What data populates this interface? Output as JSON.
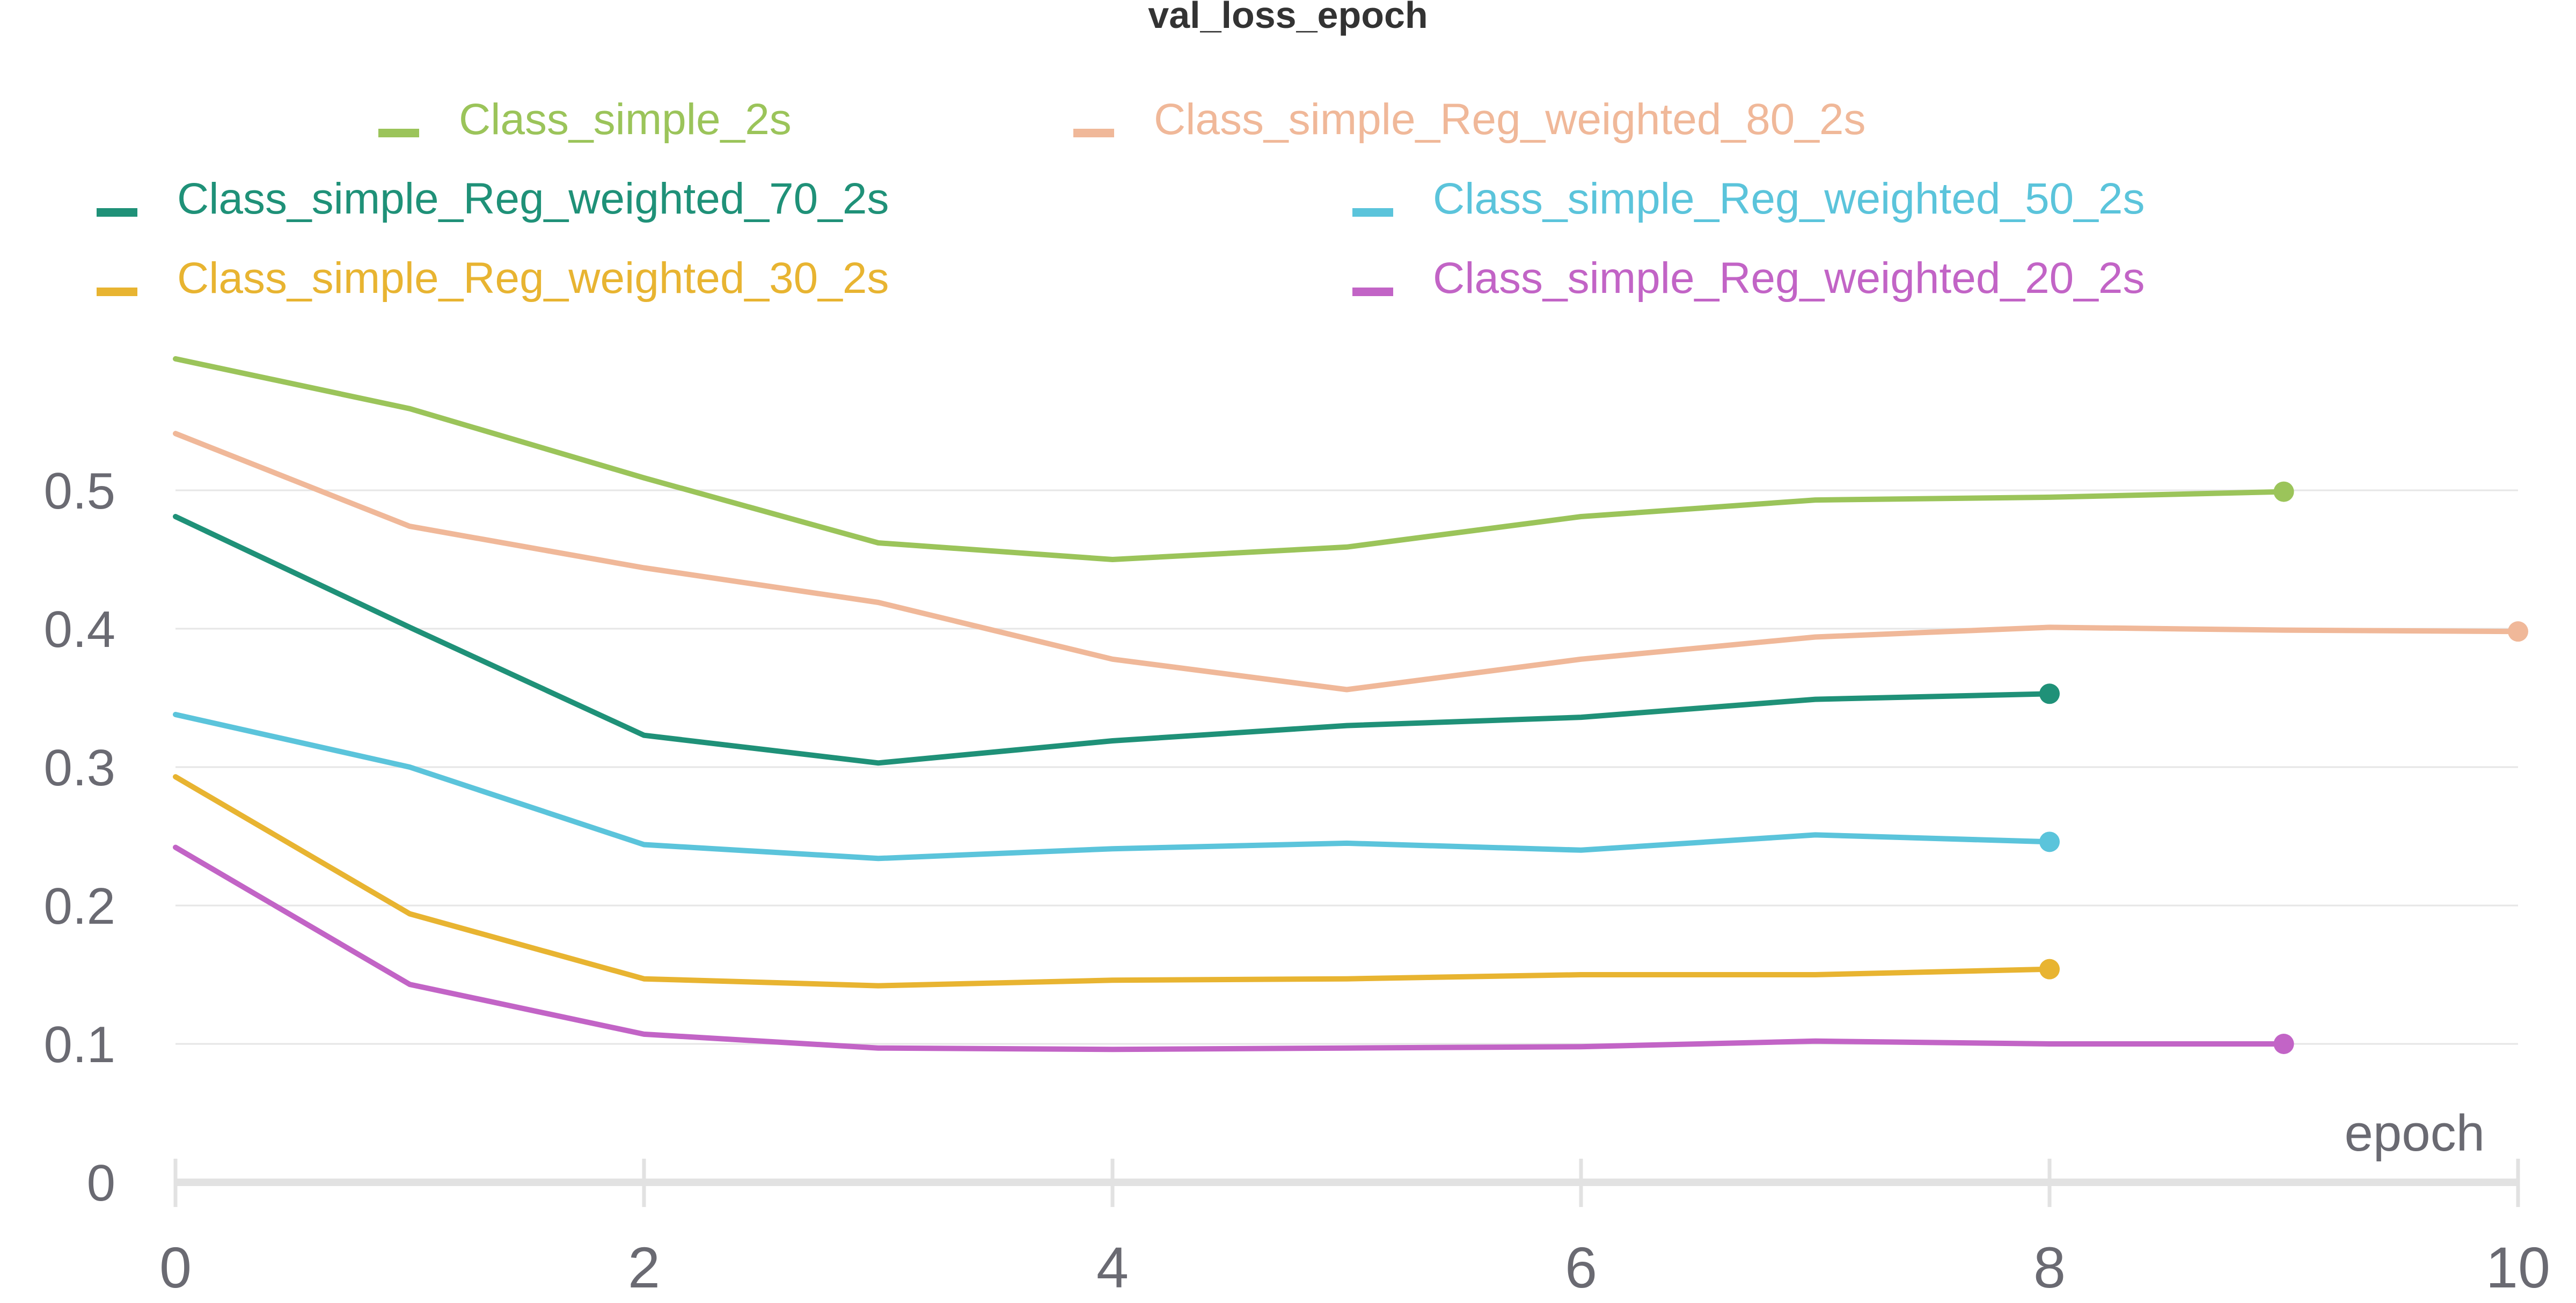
{
  "chart_data": {
    "type": "line",
    "title": "val_loss_epoch",
    "xlabel": "epoch",
    "ylabel": "",
    "xlim": [
      0,
      10
    ],
    "ylim": [
      0,
      0.6
    ],
    "x_ticks": [
      0,
      2,
      4,
      6,
      8,
      10
    ],
    "y_ticks": [
      0,
      0.1,
      0.2,
      0.3,
      0.4,
      0.5
    ],
    "grid": true,
    "legend_position": "top",
    "series": [
      {
        "name": "Class_simple_2s",
        "color": "#9bc45a",
        "x": [
          0,
          1,
          2,
          3,
          4,
          5,
          6,
          7,
          8,
          9
        ],
        "values": [
          0.595,
          0.559,
          0.509,
          0.462,
          0.45,
          0.459,
          0.481,
          0.493,
          0.495,
          0.499
        ]
      },
      {
        "name": "Class_simple_Reg_weighted_80_2s",
        "color": "#f0b899",
        "x": [
          0,
          1,
          2,
          3,
          4,
          5,
          6,
          7,
          8,
          9,
          10
        ],
        "values": [
          0.541,
          0.474,
          0.444,
          0.419,
          0.378,
          0.356,
          0.378,
          0.394,
          0.401,
          0.399,
          0.398
        ]
      },
      {
        "name": "Class_simple_Reg_weighted_70_2s",
        "color": "#1f9178",
        "x": [
          0,
          1,
          2,
          3,
          4,
          5,
          6,
          7,
          8
        ],
        "values": [
          0.481,
          0.401,
          0.323,
          0.303,
          0.319,
          0.33,
          0.336,
          0.349,
          0.353
        ]
      },
      {
        "name": "Class_simple_Reg_weighted_50_2s",
        "color": "#5bc4db",
        "x": [
          0,
          1,
          2,
          3,
          4,
          5,
          6,
          7,
          8
        ],
        "values": [
          0.338,
          0.3,
          0.244,
          0.234,
          0.241,
          0.245,
          0.24,
          0.251,
          0.246
        ]
      },
      {
        "name": "Class_simple_Reg_weighted_30_2s",
        "color": "#e8b431",
        "x": [
          0,
          1,
          2,
          3,
          4,
          5,
          6,
          7,
          8
        ],
        "values": [
          0.293,
          0.194,
          0.147,
          0.142,
          0.146,
          0.147,
          0.15,
          0.15,
          0.154
        ]
      },
      {
        "name": "Class_simple_Reg_weighted_20_2s",
        "color": "#c264c6",
        "x": [
          0,
          1,
          2,
          3,
          4,
          5,
          6,
          7,
          8,
          9
        ],
        "values": [
          0.242,
          0.143,
          0.107,
          0.097,
          0.096,
          0.097,
          0.098,
          0.102,
          0.1,
          0.1
        ]
      }
    ]
  }
}
